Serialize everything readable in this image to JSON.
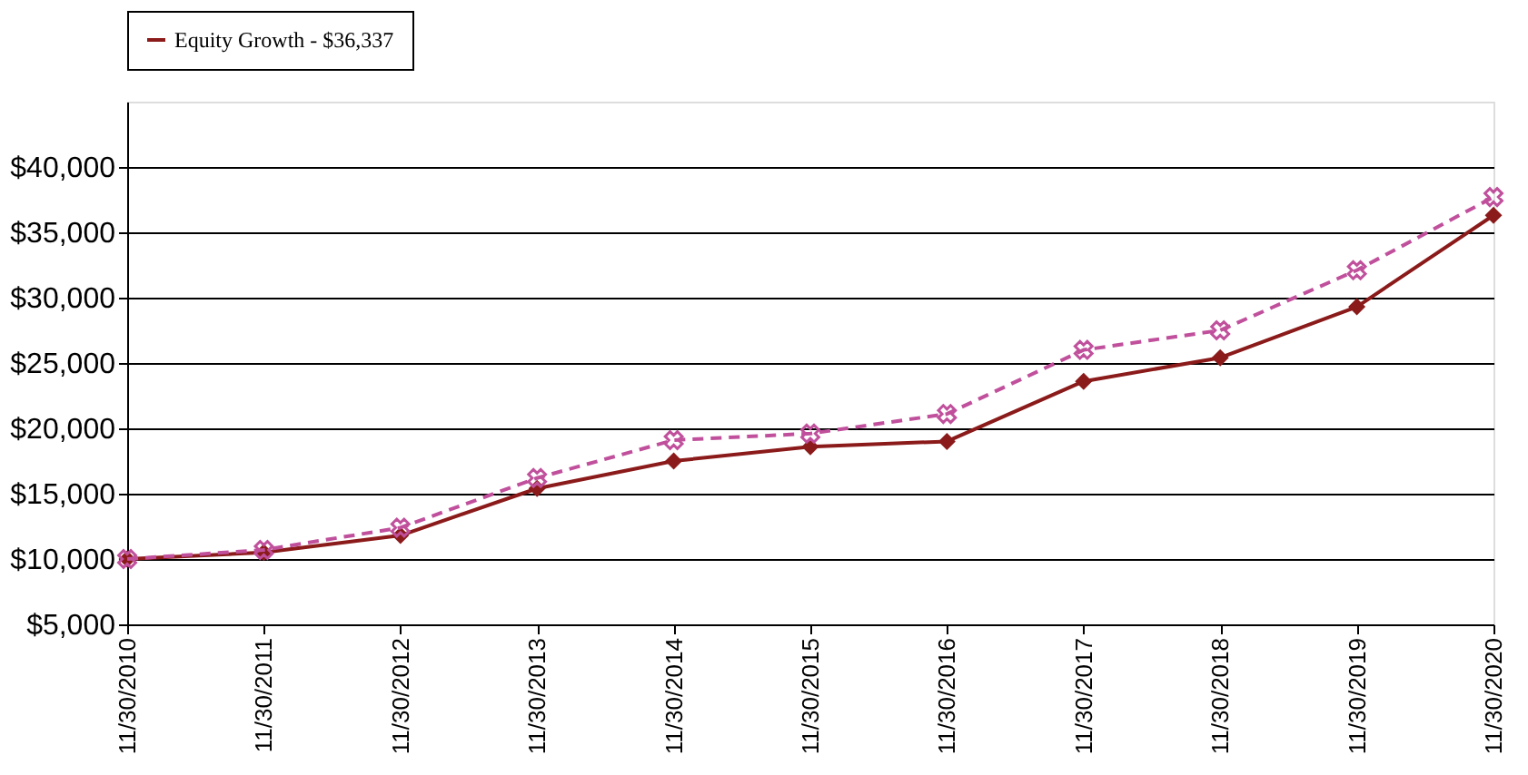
{
  "chart_data": {
    "type": "line",
    "categories": [
      "11/30/2010",
      "11/30/2011",
      "11/30/2012",
      "11/30/2013",
      "11/30/2014",
      "11/30/2015",
      "11/30/2016",
      "11/30/2017",
      "11/30/2018",
      "11/30/2019",
      "11/30/2020"
    ],
    "series": [
      {
        "name": "Equity Growth - $36,337",
        "color": "#8b1a1a",
        "marker": "diamond",
        "line_style": "solid",
        "values": [
          10000,
          10500,
          11800,
          15400,
          17500,
          18600,
          19000,
          23600,
          25400,
          29300,
          36300
        ]
      },
      {
        "color": "#c0509c",
        "marker": "cross",
        "line_style": "dashed",
        "values": [
          10000,
          10700,
          12400,
          16200,
          19100,
          19600,
          21100,
          26000,
          27500,
          32100,
          37700
        ]
      }
    ],
    "ylim": [
      5000,
      45000
    ],
    "yticks": [
      {
        "value": 5000,
        "label": "$5,000"
      },
      {
        "value": 10000,
        "label": "$10,000"
      },
      {
        "value": 15000,
        "label": "$15,000"
      },
      {
        "value": 20000,
        "label": "$20,000"
      },
      {
        "value": 25000,
        "label": "$25,000"
      },
      {
        "value": 30000,
        "label": "$30,000"
      },
      {
        "value": 35000,
        "label": "$35,000"
      },
      {
        "value": 40000,
        "label": "$40,000"
      }
    ],
    "grid": "y",
    "legend": "top"
  }
}
